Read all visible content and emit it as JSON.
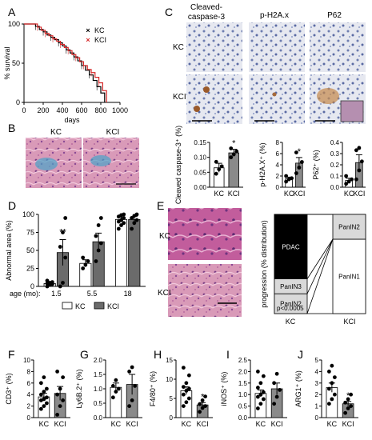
{
  "panel_letters": [
    "A",
    "B",
    "C",
    "D",
    "E",
    "F",
    "G",
    "H",
    "I",
    "J"
  ],
  "colors": {
    "kc": "#000000",
    "kci": "#d62728",
    "white_bar": "#ffffff",
    "grey_bar": "#8a8a8a",
    "dark_bar": "#6b6b6b"
  },
  "histology_labels": {
    "b_kc": "KC",
    "b_kci": "KCI",
    "c_head1": "Cleaved-",
    "c_head2": "caspase-3",
    "c_head3": "p-H2A.x",
    "c_head4": "P62",
    "c_row1": "KC",
    "c_row2": "KCI",
    "e_kc": "KC",
    "e_kci": "KCI"
  },
  "chart_data": [
    {
      "id": "A",
      "type": "line",
      "xlabel": "days",
      "ylabel": "% survival",
      "xlim": [
        0,
        1000
      ],
      "ylim": [
        0,
        100
      ],
      "xticks": [
        0,
        200,
        400,
        600,
        800,
        1000
      ],
      "yticks": [
        0,
        50,
        100
      ],
      "legend": "top-right",
      "series": [
        {
          "name": "KC",
          "color": "#000000",
          "points": [
            [
              0,
              100
            ],
            [
              100,
              100
            ],
            [
              120,
              97
            ],
            [
              160,
              93
            ],
            [
              200,
              90
            ],
            [
              240,
              86
            ],
            [
              280,
              83
            ],
            [
              320,
              80
            ],
            [
              360,
              76
            ],
            [
              400,
              72
            ],
            [
              440,
              67
            ],
            [
              480,
              63
            ],
            [
              520,
              58
            ],
            [
              560,
              53
            ],
            [
              600,
              47
            ],
            [
              640,
              41
            ],
            [
              680,
              35
            ],
            [
              720,
              28
            ],
            [
              760,
              20
            ],
            [
              800,
              12
            ],
            [
              840,
              0
            ]
          ]
        },
        {
          "name": "KCI",
          "color": "#d62728",
          "points": [
            [
              0,
              100
            ],
            [
              110,
              100
            ],
            [
              140,
              96
            ],
            [
              180,
              92
            ],
            [
              220,
              88
            ],
            [
              260,
              85
            ],
            [
              300,
              81
            ],
            [
              340,
              78
            ],
            [
              380,
              74
            ],
            [
              420,
              70
            ],
            [
              460,
              66
            ],
            [
              500,
              61
            ],
            [
              540,
              57
            ],
            [
              580,
              52
            ],
            [
              620,
              47
            ],
            [
              660,
              42
            ],
            [
              700,
              38
            ],
            [
              740,
              32
            ],
            [
              780,
              25
            ],
            [
              820,
              15
            ],
            [
              860,
              0
            ]
          ]
        }
      ]
    },
    {
      "id": "C1",
      "type": "bar",
      "ylabel": "Cleaved caspase-3⁺ (%)",
      "categories": [
        "KC",
        "KCI"
      ],
      "values": [
        0.065,
        0.115
      ],
      "errors": [
        0.015,
        0.012
      ],
      "ylim": [
        0,
        0.15
      ],
      "yticks": [
        "0.00",
        "0.05",
        "0.10",
        "0.15"
      ],
      "points": [
        [
          0.045,
          0.06,
          0.07,
          0.085
        ],
        [
          0.1,
          0.11,
          0.12,
          0.13
        ]
      ],
      "sig": [
        "",
        "*"
      ]
    },
    {
      "id": "C2",
      "type": "bar",
      "ylabel": "p-H2A.X⁺ (%)",
      "categories": [
        "KC",
        "KCI"
      ],
      "values": [
        1.5,
        4.3
      ],
      "errors": [
        0.3,
        1.0
      ],
      "ylim": [
        0,
        8
      ],
      "yticks": [
        "0",
        "2",
        "4",
        "6",
        "8"
      ],
      "points": [
        [
          1.0,
          1.4,
          1.6,
          2.0
        ],
        [
          2.5,
          3.5,
          4.5,
          6.2
        ]
      ],
      "sig": [
        "",
        "*"
      ]
    },
    {
      "id": "C3",
      "type": "bar",
      "ylabel": "P62⁺ (%)",
      "categories": [
        "KC",
        "KCI"
      ],
      "values": [
        0.06,
        0.22
      ],
      "errors": [
        0.02,
        0.07
      ],
      "ylim": [
        0,
        0.4
      ],
      "yticks": [
        "0.0",
        "0.1",
        "0.2",
        "0.3",
        "0.4"
      ],
      "points": [
        [
          0.03,
          0.05,
          0.07,
          0.1
        ],
        [
          0.07,
          0.15,
          0.23,
          0.33,
          0.35
        ]
      ],
      "sig": [
        "",
        "*"
      ]
    },
    {
      "id": "D",
      "type": "bar",
      "ylabel": "Abnormal area (%)",
      "xlabel_prefix": "age (mo):",
      "groups": [
        "1.5",
        "5.5",
        "18"
      ],
      "series": [
        {
          "name": "KC",
          "values": [
            4,
            32,
            93
          ],
          "errors": [
            1.5,
            5,
            3
          ]
        },
        {
          "name": "KCI",
          "values": [
            47,
            62,
            93
          ],
          "errors": [
            18,
            12,
            4
          ]
        }
      ],
      "ylim": [
        0,
        100
      ],
      "yticks": [
        "0",
        "25",
        "50",
        "75",
        "100"
      ],
      "legend": "bottom",
      "sig": [
        "**",
        "",
        ""
      ],
      "points_kc": [
        [
          0,
          2,
          3,
          4,
          5,
          6,
          8
        ],
        [
          25,
          30,
          35,
          40
        ],
        [
          80,
          85,
          88,
          90,
          92,
          95,
          97,
          99,
          100
        ]
      ],
      "points_kci": [
        [
          0,
          5,
          40,
          55,
          75,
          95
        ],
        [
          35,
          50,
          60,
          70,
          85,
          95
        ],
        [
          80,
          88,
          92,
          95,
          98,
          100
        ]
      ]
    },
    {
      "id": "E",
      "type": "bar",
      "ylabel": "progression (% distribution)",
      "categories": [
        "KC",
        "KCI"
      ],
      "pvalue": "p<0.0005",
      "stacks": {
        "KC": [
          {
            "name": "PanIN2",
            "value": 20
          },
          {
            "name": "PanIN3",
            "value": 15
          },
          {
            "name": "PDAC",
            "value": 65
          }
        ],
        "KCI": [
          {
            "name": "PanIN1",
            "value": 75
          },
          {
            "name": "PanIN2",
            "value": 25
          }
        ]
      }
    },
    {
      "id": "F",
      "type": "bar",
      "ylabel": "CD3⁺ (%)",
      "categories": [
        "KC",
        "KCI"
      ],
      "values": [
        3.6,
        4.2
      ],
      "errors": [
        0.6,
        1.2
      ],
      "ylim": [
        0,
        10
      ],
      "yticks": [
        "0",
        "2",
        "4",
        "6",
        "8",
        "10"
      ],
      "points": [
        [
          1.5,
          2,
          2.5,
          3,
          3.2,
          3.5,
          4,
          4.5,
          5,
          6,
          7
        ],
        [
          0.5,
          2,
          3,
          4,
          5,
          7,
          8
        ]
      ],
      "sig": [
        "",
        ""
      ]
    },
    {
      "id": "G",
      "type": "bar",
      "ylabel": "Ly6B.2⁺ (%)",
      "categories": [
        "KC",
        "KCI"
      ],
      "values": [
        1.05,
        1.15
      ],
      "errors": [
        0.15,
        0.35
      ],
      "ylim": [
        0,
        2.0
      ],
      "yticks": [
        "0.0",
        "0.5",
        "1.0",
        "1.5",
        "2.0"
      ],
      "points": [
        [
          0.7,
          0.9,
          1.0,
          1.1,
          1.3
        ],
        [
          0.4,
          0.6,
          1.1,
          1.6,
          1.75
        ]
      ],
      "sig": [
        "",
        ""
      ]
    },
    {
      "id": "H",
      "type": "bar",
      "ylabel": "F4/80⁺ (%)",
      "categories": [
        "KC",
        "KCI"
      ],
      "values": [
        7.0,
        3.3
      ],
      "errors": [
        1.0,
        0.6
      ],
      "ylim": [
        0,
        15
      ],
      "yticks": [
        "0",
        "5",
        "10",
        "15"
      ],
      "points": [
        [
          3,
          4,
          5,
          6,
          7,
          7.5,
          8,
          9,
          11,
          13
        ],
        [
          1.5,
          2.5,
          3,
          3.5,
          4.5,
          5.5
        ]
      ],
      "sig": [
        "",
        "*"
      ]
    },
    {
      "id": "I",
      "type": "bar",
      "ylabel": "iNOS⁺ (%)",
      "categories": [
        "KC",
        "KCI"
      ],
      "values": [
        1.05,
        1.25
      ],
      "errors": [
        0.15,
        0.25
      ],
      "ylim": [
        0,
        2.5
      ],
      "yticks": [
        "0.0",
        "0.5",
        "1.0",
        "1.5",
        "2.0",
        "2.5"
      ],
      "points": [
        [
          0.4,
          0.6,
          0.8,
          0.9,
          1.0,
          1.1,
          1.3,
          1.5,
          1.8,
          2.0
        ],
        [
          0.6,
          0.9,
          1.2,
          1.5,
          1.9
        ]
      ],
      "sig": [
        "",
        ""
      ]
    },
    {
      "id": "J",
      "type": "bar",
      "ylabel": "ARG1⁺ (%)",
      "categories": [
        "KC",
        "KCI"
      ],
      "values": [
        2.6,
        1.2
      ],
      "errors": [
        0.4,
        0.2
      ],
      "ylim": [
        0,
        5
      ],
      "yticks": [
        "0",
        "1",
        "2",
        "3",
        "4",
        "5"
      ],
      "points": [
        [
          1.2,
          1.6,
          2,
          2.5,
          3,
          3.5,
          4,
          4.5
        ],
        [
          0.4,
          0.8,
          1.0,
          1.3,
          1.6,
          2.0
        ]
      ],
      "sig": [
        "",
        "*"
      ]
    }
  ]
}
